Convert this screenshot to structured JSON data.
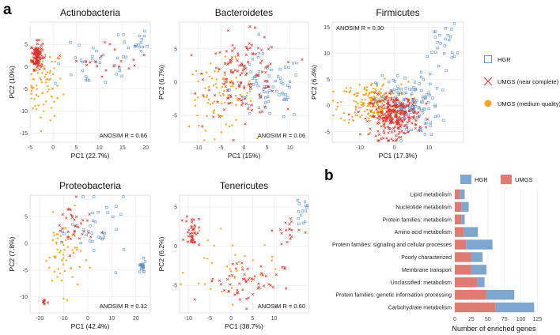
{
  "figure": {
    "panel_a": "a",
    "panel_b": "b"
  },
  "legend": {
    "items": [
      {
        "label": "HGR",
        "marker": "square",
        "color": "#5b8fc7"
      },
      {
        "label": "UMGS (near complete)",
        "marker": "cross",
        "color": "#d9322c"
      },
      {
        "label": "UMGS (medium quality)",
        "marker": "dot",
        "color": "#f5a623"
      }
    ]
  },
  "chart_data": [
    {
      "type": "scatter",
      "title": "Actinobacteria",
      "xlabel": "PC1 (22.7%)",
      "ylabel": "PC2 (10%)",
      "xlim": [
        -5,
        21
      ],
      "ylim": [
        -17,
        10
      ],
      "xticks": [
        -5,
        0,
        5,
        10,
        15,
        20
      ],
      "yticks": [
        -15,
        -10,
        -5,
        0,
        5
      ],
      "annotation": "ANOSIM R = 0.66",
      "clusters": [
        {
          "series": "UMGS (near complete)",
          "cx": -3.5,
          "cy": 2.5,
          "sx": 0.6,
          "sy": 1.5,
          "n": 110
        },
        {
          "series": "UMGS (medium quality)",
          "cx": -2.0,
          "cy": -4.0,
          "sx": 2.0,
          "sy": 4.0,
          "n": 80
        },
        {
          "series": "HGR",
          "cx": 9.0,
          "cy": 0.0,
          "sx": 4.5,
          "sy": 2.5,
          "n": 30
        },
        {
          "series": "HGR",
          "cx": 17.5,
          "cy": 5.0,
          "sx": 1.5,
          "sy": 2.0,
          "n": 18
        },
        {
          "series": "UMGS (near complete)",
          "cx": 13.0,
          "cy": 2.0,
          "sx": 4.0,
          "sy": 2.0,
          "n": 20
        }
      ]
    },
    {
      "type": "scatter",
      "title": "Bacteroidetes",
      "xlabel": "PC1 (15%)",
      "ylabel": "PC2 (6.7%)",
      "xlim": [
        -14,
        14
      ],
      "ylim": [
        -9,
        9
      ],
      "xticks": [
        -10,
        -5,
        0,
        5,
        10
      ],
      "yticks": [
        -5,
        0,
        5
      ],
      "annotation": "ANOSIM R = 0.06",
      "clusters": [
        {
          "series": "UMGS (medium quality)",
          "cx": -5.0,
          "cy": -2.0,
          "sx": 3.5,
          "sy": 2.5,
          "n": 90
        },
        {
          "series": "UMGS (near complete)",
          "cx": 0.0,
          "cy": 1.0,
          "sx": 4.0,
          "sy": 3.0,
          "n": 130
        },
        {
          "series": "HGR",
          "cx": 5.0,
          "cy": -1.0,
          "sx": 4.0,
          "sy": 2.5,
          "n": 70
        }
      ]
    },
    {
      "type": "scatter",
      "title": "Firmicutes",
      "xlabel": "PC1 (17.3%)",
      "ylabel": "PC2 (6.4%)",
      "xlim": [
        -18,
        20
      ],
      "ylim": [
        -7,
        16
      ],
      "xticks": [
        -10,
        0,
        10
      ],
      "yticks": [
        -5,
        0,
        5,
        10,
        15
      ],
      "annotation": "ANOSIM R = 0.30",
      "clusters": [
        {
          "series": "UMGS (medium quality)",
          "cx": -6.0,
          "cy": 0.5,
          "sx": 5.0,
          "sy": 2.0,
          "n": 220
        },
        {
          "series": "UMGS (near complete)",
          "cx": 0.0,
          "cy": -2.0,
          "sx": 3.5,
          "sy": 2.0,
          "n": 260
        },
        {
          "series": "HGR",
          "cx": 4.0,
          "cy": 0.0,
          "sx": 4.5,
          "sy": 3.0,
          "n": 140
        },
        {
          "series": "HGR",
          "cx": 14.0,
          "cy": 12.0,
          "sx": 2.0,
          "sy": 2.0,
          "n": 25
        }
      ]
    },
    {
      "type": "scatter",
      "title": "Proteobacteria",
      "xlabel": "PC1 (42.4%)",
      "ylabel": "PC2 (7.8%)",
      "xlim": [
        -24,
        26
      ],
      "ylim": [
        -13,
        9
      ],
      "xticks": [
        -20,
        -10,
        0,
        10,
        20
      ],
      "yticks": [
        -10,
        -5,
        0,
        5
      ],
      "annotation": "ANOSIM R = 0.32",
      "clusters": [
        {
          "series": "UMGS (medium quality)",
          "cx": -10.0,
          "cy": -2.0,
          "sx": 4.0,
          "sy": 3.5,
          "n": 60
        },
        {
          "series": "UMGS (near complete)",
          "cx": -6.0,
          "cy": 3.0,
          "sx": 4.0,
          "sy": 2.5,
          "n": 35
        },
        {
          "series": "HGR",
          "cx": 5.0,
          "cy": 2.0,
          "sx": 6.0,
          "sy": 3.0,
          "n": 35
        },
        {
          "series": "HGR",
          "cx": 22.5,
          "cy": -4.5,
          "sx": 0.8,
          "sy": 0.6,
          "n": 20
        },
        {
          "series": "UMGS (near complete)",
          "cx": -18.0,
          "cy": -11.0,
          "sx": 0.6,
          "sy": 0.4,
          "n": 8
        }
      ]
    },
    {
      "type": "scatter",
      "title": "Tenericutes",
      "xlabel": "PC1 (38.7%)",
      "ylabel": "PC2 (6.2%)",
      "xlim": [
        -12,
        18
      ],
      "ylim": [
        -8.5,
        6.5
      ],
      "xticks": [
        -10,
        -5,
        0,
        5,
        10
      ],
      "yticks": [
        -5,
        0,
        5
      ],
      "annotation": "ANOSIM R = 0.60",
      "clusters": [
        {
          "series": "UMGS (near complete)",
          "cx": -9.0,
          "cy": 2.0,
          "sx": 0.8,
          "sy": 1.0,
          "n": 40
        },
        {
          "series": "UMGS (near complete)",
          "cx": 3.0,
          "cy": -4.5,
          "sx": 4.5,
          "sy": 1.5,
          "n": 55
        },
        {
          "series": "UMGS (medium quality)",
          "cx": 0.0,
          "cy": -3.0,
          "sx": 5.0,
          "sy": 2.0,
          "n": 35
        },
        {
          "series": "UMGS (near complete)",
          "cx": 13.0,
          "cy": 2.0,
          "sx": 1.5,
          "sy": 1.0,
          "n": 18
        },
        {
          "series": "HGR",
          "cx": 16.5,
          "cy": 4.5,
          "sx": 0.8,
          "sy": 0.8,
          "n": 14
        }
      ]
    },
    {
      "type": "bar",
      "orientation": "horizontal",
      "stacked": true,
      "xlabel": "Number of enriched genes",
      "xlim": [
        0,
        128
      ],
      "xticks": [
        0,
        25,
        50,
        75,
        100,
        125
      ],
      "legend": [
        "HGR",
        "UMGS"
      ],
      "categories": [
        "Lipid metabolism",
        "Nucleotide metabolism",
        "Protein families: metabolism",
        "Amino acid metabolism",
        "Protein families: signaling and cellular processes",
        "Poorly characterized",
        "Membrane transport",
        "Unclassified: metabolism",
        "Protein families: genetic information processing",
        "Carbohydrate metabolism"
      ],
      "series": [
        {
          "name": "UMGS",
          "color": "#e07b74",
          "values": [
            8,
            10,
            10,
            14,
            17,
            25,
            25,
            34,
            48,
            62
          ]
        },
        {
          "name": "HGR",
          "color": "#7ea6cf",
          "values": [
            7,
            11,
            5,
            21,
            40,
            17,
            23,
            11,
            42,
            58
          ]
        }
      ]
    }
  ]
}
